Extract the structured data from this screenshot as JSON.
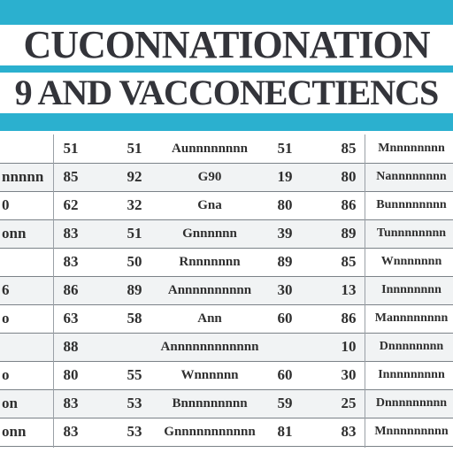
{
  "title": {
    "line1": "CUCONNATIONATION",
    "line2": "9 AND VACCONECTIENCS"
  },
  "colors": {
    "banner": "#2bb0cf",
    "text": "#2f2f2f",
    "grid": "#7b8288"
  },
  "rows": [
    {
      "name": "",
      "n1": "51",
      "n2": "51",
      "mid": "Aunnnnnnnn",
      "n3": "51",
      "n4": "85",
      "right": "Mnnnnnnnn"
    },
    {
      "name": "nnnnn",
      "n1": "85",
      "n2": "92",
      "mid": "G90",
      "n3": "19",
      "n4": "80",
      "right": "Nannnnnnnn"
    },
    {
      "name": "0",
      "n1": "62",
      "n2": "32",
      "mid": "Gna",
      "n3": "80",
      "n4": "86",
      "right": "Bunnnnnnnn"
    },
    {
      "name": "onn",
      "n1": "83",
      "n2": "51",
      "mid": "Gnnnnnn",
      "n3": "39",
      "n4": "89",
      "right": "Tunnnnnnnn"
    },
    {
      "name": "",
      "n1": "83",
      "n2": "50",
      "mid": "Rnnnnnnn",
      "n3": "89",
      "n4": "85",
      "right": "Wnnnnnnn"
    },
    {
      "name": "6",
      "n1": "86",
      "n2": "89",
      "mid": "Annnnnnnnnn",
      "n3": "30",
      "n4": "13",
      "right": "Innnnnnnn"
    },
    {
      "name": "o",
      "n1": "63",
      "n2": "58",
      "mid": "Ann",
      "n3": "60",
      "n4": "86",
      "right": "Mannnnnnnn"
    },
    {
      "name": "",
      "n1": "88",
      "n2": "",
      "mid": "Annnnnnnnnnnn",
      "n3": "",
      "n4": "10",
      "right": "Dnnnnnnnn"
    },
    {
      "name": "o",
      "n1": "80",
      "n2": "55",
      "mid": "Wnnnnnn",
      "n3": "60",
      "n4": "30",
      "right": "Innnnnnnnn"
    },
    {
      "name": "on",
      "n1": "83",
      "n2": "53",
      "mid": "Bnnnnnnnnn",
      "n3": "59",
      "n4": "25",
      "right": "Dnnnnnnnnn"
    },
    {
      "name": "onn",
      "n1": "83",
      "n2": "53",
      "mid": "Gnnnnnnnnnnn",
      "n3": "81",
      "n4": "83",
      "right": "Mnnnnnnnnn"
    }
  ]
}
